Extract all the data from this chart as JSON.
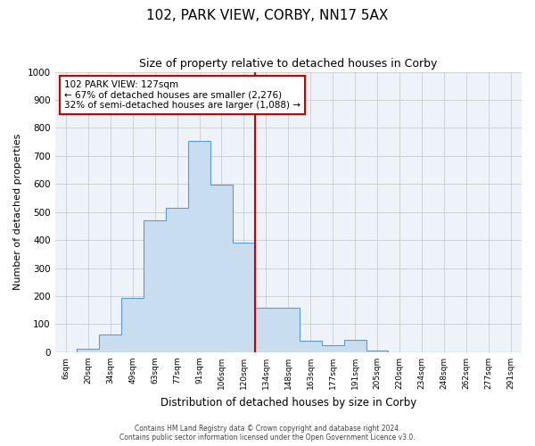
{
  "title": "102, PARK VIEW, CORBY, NN17 5AX",
  "subtitle": "Size of property relative to detached houses in Corby",
  "xlabel": "Distribution of detached houses by size in Corby",
  "ylabel": "Number of detached properties",
  "bar_labels": [
    "6sqm",
    "20sqm",
    "34sqm",
    "49sqm",
    "63sqm",
    "77sqm",
    "91sqm",
    "106sqm",
    "120sqm",
    "134sqm",
    "148sqm",
    "163sqm",
    "177sqm",
    "191sqm",
    "205sqm",
    "220sqm",
    "234sqm",
    "248sqm",
    "262sqm",
    "277sqm",
    "291sqm"
  ],
  "bar_values": [
    0,
    13,
    62,
    195,
    470,
    515,
    755,
    597,
    390,
    160,
    160,
    42,
    25,
    45,
    5,
    0,
    0,
    0,
    0,
    0,
    0
  ],
  "bar_color": "#c9ddf0",
  "bar_edge_color": "#5b9bd5",
  "marker_color": "#cc0000",
  "annotation_title": "102 PARK VIEW: 127sqm",
  "annotation_line1": "← 67% of detached houses are smaller (2,276)",
  "annotation_line2": "32% of semi-detached houses are larger (1,088) →",
  "annotation_box_color": "#ffffff",
  "annotation_box_edge_color": "#cc0000",
  "ylim": [
    0,
    1000
  ],
  "yticks": [
    0,
    100,
    200,
    300,
    400,
    500,
    600,
    700,
    800,
    900,
    1000
  ],
  "background_color": "#ffffff",
  "plot_bg_color": "#eef3fa",
  "grid_color": "#cccccc",
  "footer1": "Contains HM Land Registry data © Crown copyright and database right 2024.",
  "footer2": "Contains public sector information licensed under the Open Government Licence v3.0."
}
